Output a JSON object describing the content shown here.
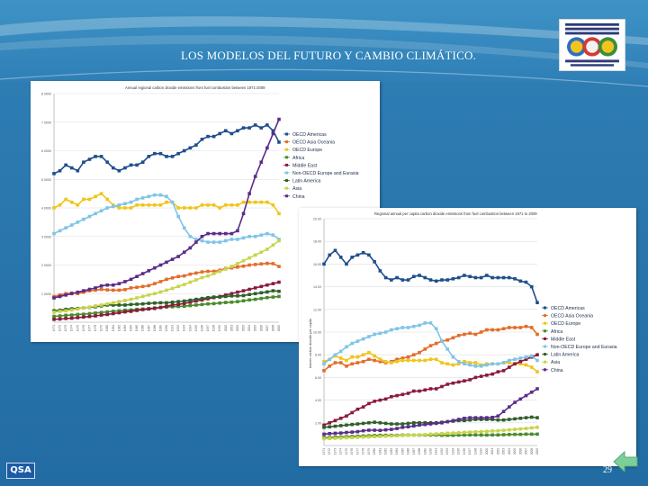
{
  "slide": {
    "title": "LOS MODELOS DEL FUTURO Y CAMBIO CLIMÁTICO.",
    "page_number": "29",
    "qsa_logo_text": "QSA",
    "background_color": "#2a77ad",
    "return_button_color": "#7ccf9a"
  },
  "chart_data": [
    {
      "type": "line",
      "title": "Annual regional carbon dioxide emissions from fuel combustion between 1971-2009",
      "xlabel": "",
      "ylabel": "",
      "legend_position": "right",
      "grid": true,
      "x": [
        "1971",
        "1972",
        "1973",
        "1974",
        "1975",
        "1976",
        "1977",
        "1978",
        "1979",
        "1980",
        "1981",
        "1982",
        "1983",
        "1984",
        "1985",
        "1986",
        "1987",
        "1988",
        "1989",
        "1990",
        "1991",
        "1992",
        "1993",
        "1994",
        "1995",
        "1996",
        "1997",
        "1998",
        "1999",
        "2000",
        "2001",
        "2002",
        "2003",
        "2004",
        "2005",
        "2006",
        "2007",
        "2008",
        "2009"
      ],
      "yticks": [
        "1 0000",
        "2 0000",
        "3 0000",
        "4 0000",
        "5 0000",
        "6 0000",
        "7 0000",
        "8 0000"
      ],
      "ylim": [
        0,
        8
      ],
      "series": [
        {
          "name": "OECD Americas",
          "color": "#1f4e8c",
          "values": [
            5.2,
            5.3,
            5.5,
            5.4,
            5.3,
            5.6,
            5.7,
            5.8,
            5.8,
            5.6,
            5.4,
            5.3,
            5.4,
            5.5,
            5.5,
            5.6,
            5.8,
            5.9,
            5.9,
            5.8,
            5.8,
            5.9,
            6.0,
            6.1,
            6.2,
            6.4,
            6.5,
            6.5,
            6.6,
            6.7,
            6.6,
            6.7,
            6.8,
            6.8,
            6.9,
            6.8,
            6.9,
            6.7,
            6.3
          ]
        },
        {
          "name": "OECD Asia Oceania",
          "color": "#e46c2a",
          "values": [
            0.9,
            0.95,
            1.0,
            1.02,
            1.0,
            1.05,
            1.1,
            1.12,
            1.15,
            1.13,
            1.12,
            1.12,
            1.14,
            1.2,
            1.22,
            1.25,
            1.28,
            1.35,
            1.42,
            1.5,
            1.55,
            1.6,
            1.62,
            1.68,
            1.72,
            1.76,
            1.78,
            1.78,
            1.82,
            1.88,
            1.9,
            1.93,
            1.96,
            2.0,
            2.02,
            2.04,
            2.06,
            2.05,
            1.95
          ]
        },
        {
          "name": "OECD Europe",
          "color": "#f0c419",
          "values": [
            4.0,
            4.1,
            4.3,
            4.2,
            4.1,
            4.3,
            4.3,
            4.4,
            4.5,
            4.3,
            4.1,
            4.0,
            4.0,
            4.0,
            4.1,
            4.1,
            4.1,
            4.1,
            4.1,
            4.2,
            4.2,
            4.0,
            4.0,
            4.0,
            4.0,
            4.1,
            4.1,
            4.1,
            4.0,
            4.1,
            4.1,
            4.1,
            4.2,
            4.2,
            4.2,
            4.2,
            4.2,
            4.1,
            3.8
          ]
        },
        {
          "name": "Africa",
          "color": "#4a8a2b",
          "values": [
            0.2,
            0.22,
            0.24,
            0.25,
            0.27,
            0.28,
            0.3,
            0.32,
            0.34,
            0.36,
            0.38,
            0.4,
            0.42,
            0.43,
            0.45,
            0.46,
            0.48,
            0.5,
            0.51,
            0.53,
            0.54,
            0.55,
            0.56,
            0.58,
            0.6,
            0.62,
            0.64,
            0.65,
            0.67,
            0.69,
            0.7,
            0.72,
            0.75,
            0.78,
            0.8,
            0.83,
            0.86,
            0.88,
            0.9
          ]
        },
        {
          "name": "Middle East",
          "color": "#8b1a3c",
          "values": [
            0.1,
            0.11,
            0.13,
            0.14,
            0.16,
            0.18,
            0.2,
            0.22,
            0.25,
            0.27,
            0.3,
            0.33,
            0.36,
            0.38,
            0.41,
            0.44,
            0.46,
            0.48,
            0.52,
            0.56,
            0.6,
            0.62,
            0.66,
            0.7,
            0.74,
            0.78,
            0.82,
            0.86,
            0.9,
            0.95,
            1.0,
            1.05,
            1.1,
            1.15,
            1.2,
            1.25,
            1.3,
            1.35,
            1.4
          ]
        },
        {
          "name": "Non-OECD Europe and Eurasia",
          "color": "#7fc4e8",
          "values": [
            3.1,
            3.2,
            3.3,
            3.4,
            3.5,
            3.6,
            3.7,
            3.8,
            3.9,
            4.0,
            4.05,
            4.1,
            4.15,
            4.2,
            4.3,
            4.35,
            4.4,
            4.45,
            4.45,
            4.4,
            4.2,
            3.7,
            3.3,
            3.0,
            2.9,
            2.85,
            2.8,
            2.8,
            2.8,
            2.85,
            2.9,
            2.9,
            2.95,
            3.0,
            3.0,
            3.05,
            3.1,
            3.05,
            2.9
          ]
        },
        {
          "name": "Latin America",
          "color": "#2f5f2a",
          "values": [
            0.4,
            0.42,
            0.45,
            0.47,
            0.48,
            0.5,
            0.52,
            0.54,
            0.57,
            0.6,
            0.6,
            0.6,
            0.6,
            0.62,
            0.63,
            0.64,
            0.66,
            0.67,
            0.68,
            0.68,
            0.7,
            0.72,
            0.74,
            0.77,
            0.8,
            0.83,
            0.86,
            0.88,
            0.88,
            0.9,
            0.92,
            0.92,
            0.93,
            0.97,
            1.0,
            1.03,
            1.06,
            1.1,
            1.08
          ]
        },
        {
          "name": "Asia",
          "color": "#c8d44a",
          "values": [
            0.35,
            0.38,
            0.4,
            0.43,
            0.46,
            0.5,
            0.53,
            0.57,
            0.6,
            0.64,
            0.68,
            0.72,
            0.76,
            0.8,
            0.85,
            0.9,
            0.95,
            1.0,
            1.06,
            1.12,
            1.18,
            1.25,
            1.32,
            1.4,
            1.48,
            1.56,
            1.62,
            1.7,
            1.78,
            1.86,
            1.95,
            2.05,
            2.15,
            2.25,
            2.35,
            2.45,
            2.55,
            2.7,
            2.85
          ]
        },
        {
          "name": "China",
          "color": "#5b2c8a",
          "values": [
            0.85,
            0.9,
            0.95,
            1.0,
            1.05,
            1.1,
            1.15,
            1.2,
            1.27,
            1.3,
            1.3,
            1.35,
            1.42,
            1.5,
            1.6,
            1.7,
            1.8,
            1.9,
            2.0,
            2.1,
            2.2,
            2.3,
            2.45,
            2.6,
            2.8,
            3.0,
            3.1,
            3.1,
            3.1,
            3.1,
            3.1,
            3.2,
            3.8,
            4.5,
            5.1,
            5.6,
            6.1,
            6.6,
            7.1
          ]
        }
      ]
    },
    {
      "type": "line",
      "title": "Regional annual per capita carbon dioxide emissions from fuel combustion between 1971 to 2009",
      "xlabel": "",
      "ylabel": "tonnes carbon dioxide per capita",
      "legend_position": "right",
      "grid": true,
      "x": [
        "1971",
        "1972",
        "1973",
        "1974",
        "1975",
        "1976",
        "1977",
        "1978",
        "1979",
        "1980",
        "1981",
        "1982",
        "1983",
        "1984",
        "1985",
        "1986",
        "1987",
        "1988",
        "1989",
        "1990",
        "1991",
        "1992",
        "1993",
        "1994",
        "1995",
        "1996",
        "1997",
        "1998",
        "1999",
        "2000",
        "2001",
        "2002",
        "2003",
        "2004",
        "2005",
        "2006",
        "2007",
        "2008",
        "2009"
      ],
      "yticks": [
        "2.00",
        "4.00",
        "6.00",
        "8.00",
        "10.00",
        "12.00",
        "14.00",
        "16.00",
        "18.00",
        "20.00"
      ],
      "ylim": [
        0,
        20
      ],
      "series": [
        {
          "name": "OECD Americas",
          "color": "#1f4e8c",
          "values": [
            16.0,
            16.8,
            17.2,
            16.6,
            16.0,
            16.6,
            16.8,
            17.0,
            16.8,
            16.2,
            15.4,
            14.8,
            14.6,
            14.8,
            14.6,
            14.6,
            14.9,
            15.0,
            14.8,
            14.6,
            14.5,
            14.6,
            14.6,
            14.7,
            14.8,
            15.0,
            14.9,
            14.8,
            14.8,
            15.0,
            14.8,
            14.8,
            14.8,
            14.8,
            14.7,
            14.5,
            14.4,
            14.0,
            12.6
          ]
        },
        {
          "name": "OECD Asia Oceania",
          "color": "#e46c2a",
          "values": [
            6.6,
            7.0,
            7.3,
            7.3,
            7.0,
            7.2,
            7.3,
            7.4,
            7.6,
            7.5,
            7.4,
            7.3,
            7.4,
            7.6,
            7.7,
            7.8,
            8.0,
            8.2,
            8.5,
            8.8,
            9.0,
            9.2,
            9.3,
            9.5,
            9.7,
            9.8,
            9.9,
            9.8,
            10.0,
            10.2,
            10.2,
            10.2,
            10.3,
            10.4,
            10.4,
            10.4,
            10.5,
            10.4,
            9.8
          ]
        },
        {
          "name": "OECD Europe",
          "color": "#f0c419",
          "values": [
            7.4,
            7.6,
            7.9,
            7.7,
            7.5,
            7.8,
            7.8,
            8.0,
            8.2,
            7.9,
            7.6,
            7.4,
            7.3,
            7.4,
            7.5,
            7.5,
            7.5,
            7.5,
            7.5,
            7.6,
            7.6,
            7.3,
            7.2,
            7.1,
            7.2,
            7.4,
            7.3,
            7.3,
            7.1,
            7.2,
            7.2,
            7.2,
            7.3,
            7.3,
            7.2,
            7.2,
            7.1,
            6.9,
            6.5
          ]
        },
        {
          "name": "Africa",
          "color": "#4a8a2b",
          "values": [
            0.7,
            0.7,
            0.75,
            0.75,
            0.78,
            0.8,
            0.82,
            0.84,
            0.86,
            0.88,
            0.9,
            0.9,
            0.9,
            0.9,
            0.92,
            0.92,
            0.92,
            0.92,
            0.92,
            0.92,
            0.92,
            0.9,
            0.9,
            0.9,
            0.92,
            0.92,
            0.93,
            0.93,
            0.92,
            0.92,
            0.93,
            0.93,
            0.95,
            0.97,
            0.98,
            0.98,
            1.0,
            1.0,
            1.0
          ]
        },
        {
          "name": "Middle East",
          "color": "#8b1a3c",
          "values": [
            1.8,
            2.0,
            2.2,
            2.4,
            2.6,
            2.9,
            3.2,
            3.4,
            3.7,
            3.9,
            4.0,
            4.1,
            4.3,
            4.4,
            4.5,
            4.6,
            4.8,
            4.8,
            4.9,
            5.0,
            5.0,
            5.2,
            5.4,
            5.5,
            5.6,
            5.7,
            5.8,
            6.0,
            6.1,
            6.2,
            6.3,
            6.5,
            6.6,
            6.9,
            7.2,
            7.4,
            7.6,
            7.8,
            8.0
          ]
        },
        {
          "name": "Non-OECD Europe and Eurasia",
          "color": "#7fc4e8",
          "values": [
            7.2,
            7.6,
            8.0,
            8.3,
            8.7,
            9.0,
            9.2,
            9.4,
            9.6,
            9.8,
            9.9,
            10.0,
            10.2,
            10.3,
            10.4,
            10.4,
            10.5,
            10.6,
            10.8,
            10.8,
            10.3,
            9.2,
            8.5,
            7.8,
            7.4,
            7.2,
            7.1,
            7.0,
            7.0,
            7.1,
            7.2,
            7.2,
            7.3,
            7.5,
            7.6,
            7.7,
            7.8,
            7.9,
            7.5
          ]
        },
        {
          "name": "Latin America",
          "color": "#2f5f2a",
          "values": [
            1.6,
            1.65,
            1.7,
            1.75,
            1.8,
            1.85,
            1.9,
            1.95,
            2.0,
            2.05,
            2.0,
            1.95,
            1.9,
            1.9,
            1.9,
            1.95,
            2.0,
            2.0,
            2.0,
            2.0,
            2.0,
            2.05,
            2.1,
            2.15,
            2.2,
            2.2,
            2.25,
            2.3,
            2.3,
            2.3,
            2.3,
            2.25,
            2.25,
            2.3,
            2.35,
            2.4,
            2.45,
            2.5,
            2.45
          ]
        },
        {
          "name": "Asia",
          "color": "#c8d44a",
          "values": [
            0.6,
            0.62,
            0.64,
            0.66,
            0.68,
            0.7,
            0.72,
            0.74,
            0.76,
            0.78,
            0.8,
            0.82,
            0.84,
            0.86,
            0.88,
            0.9,
            0.92,
            0.94,
            0.96,
            1.0,
            1.02,
            1.05,
            1.08,
            1.1,
            1.13,
            1.16,
            1.18,
            1.2,
            1.22,
            1.25,
            1.28,
            1.3,
            1.34,
            1.38,
            1.42,
            1.46,
            1.5,
            1.55,
            1.6
          ]
        },
        {
          "name": "China",
          "color": "#5b2c8a",
          "values": [
            1.0,
            1.05,
            1.08,
            1.1,
            1.15,
            1.18,
            1.22,
            1.3,
            1.35,
            1.35,
            1.33,
            1.38,
            1.42,
            1.5,
            1.6,
            1.65,
            1.72,
            1.8,
            1.85,
            1.9,
            1.95,
            2.0,
            2.1,
            2.2,
            2.3,
            2.4,
            2.45,
            2.45,
            2.45,
            2.45,
            2.48,
            2.6,
            3.0,
            3.4,
            3.8,
            4.1,
            4.4,
            4.7,
            5.0
          ]
        }
      ]
    }
  ]
}
